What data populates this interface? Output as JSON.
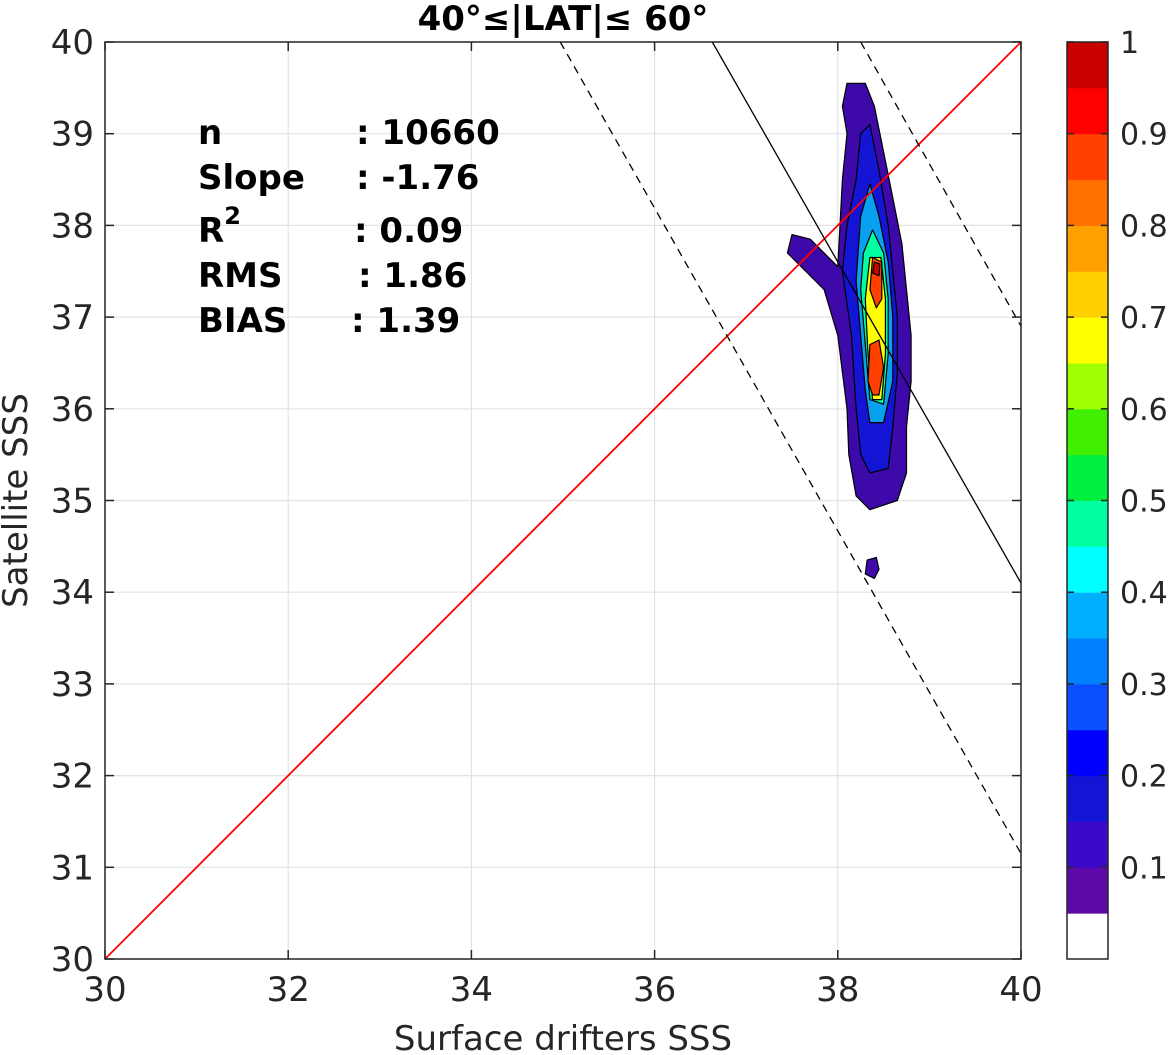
{
  "chart_data": {
    "type": "contour",
    "title": "40°≤|LAT|≤ 60°",
    "xlabel": "Surface drifters SSS",
    "ylabel": "Satellite SSS",
    "xlim": [
      30,
      40
    ],
    "ylim": [
      30,
      40
    ],
    "xticks": [
      "30",
      "32",
      "34",
      "36",
      "38",
      "40"
    ],
    "yticks": [
      "30",
      "31",
      "32",
      "33",
      "34",
      "35",
      "36",
      "37",
      "38",
      "39",
      "40"
    ],
    "grid": true,
    "stats": [
      {
        "label": "n",
        "value": ": 10660"
      },
      {
        "label": "Slope",
        "value": ": -1.76"
      },
      {
        "label": "R",
        "sup": "2",
        "value": ": 0.09"
      },
      {
        "label": "RMS",
        "value": ": 1.86"
      },
      {
        "label": "BIAS",
        "value": ": 1.39"
      }
    ],
    "one_to_one_line": {
      "color": "#ff0000",
      "x": [
        30,
        40
      ],
      "y": [
        30,
        40
      ]
    },
    "fit_line": {
      "slope": -1.76,
      "x": [
        36.63,
        40
      ],
      "y": [
        40,
        34.1
      ]
    },
    "fit_bounds": [
      {
        "x": [
          34.97,
          40
        ],
        "y": [
          40,
          31.15
        ]
      },
      {
        "x": [
          38.25,
          40
        ],
        "y": [
          40,
          36.9
        ]
      }
    ],
    "density_contours": [
      {
        "level": 0.05,
        "color": "#3d09a9",
        "points": [
          [
            38.0,
            37.55
          ],
          [
            37.7,
            37.85
          ],
          [
            37.5,
            37.9
          ],
          [
            37.45,
            37.7
          ],
          [
            37.6,
            37.55
          ],
          [
            37.85,
            37.3
          ],
          [
            38.0,
            36.8
          ],
          [
            38.1,
            36.0
          ],
          [
            38.12,
            35.5
          ],
          [
            38.2,
            35.05
          ],
          [
            38.35,
            34.9
          ],
          [
            38.65,
            35.0
          ],
          [
            38.75,
            35.3
          ],
          [
            38.75,
            35.8
          ],
          [
            38.8,
            36.3
          ],
          [
            38.8,
            36.8
          ],
          [
            38.75,
            37.3
          ],
          [
            38.7,
            37.8
          ],
          [
            38.6,
            38.3
          ],
          [
            38.5,
            38.8
          ],
          [
            38.4,
            39.3
          ],
          [
            38.3,
            39.55
          ],
          [
            38.1,
            39.55
          ],
          [
            38.05,
            39.3
          ],
          [
            38.1,
            39.0
          ],
          [
            38.05,
            38.5
          ]
        ]
      },
      {
        "level": 0.05,
        "color": "#3d09a9",
        "points": [
          [
            38.32,
            34.35
          ],
          [
            38.42,
            34.38
          ],
          [
            38.45,
            34.25
          ],
          [
            38.4,
            34.15
          ],
          [
            38.3,
            34.2
          ]
        ]
      },
      {
        "level": 0.15,
        "color": "#1414d4",
        "points": [
          [
            38.05,
            37.5
          ],
          [
            38.15,
            36.8
          ],
          [
            38.2,
            36.0
          ],
          [
            38.25,
            35.5
          ],
          [
            38.35,
            35.3
          ],
          [
            38.55,
            35.35
          ],
          [
            38.6,
            35.8
          ],
          [
            38.65,
            36.4
          ],
          [
            38.65,
            37.0
          ],
          [
            38.6,
            37.5
          ],
          [
            38.55,
            38.0
          ],
          [
            38.45,
            38.6
          ],
          [
            38.35,
            39.1
          ],
          [
            38.25,
            39.0
          ],
          [
            38.2,
            38.5
          ],
          [
            38.1,
            38.0
          ]
        ]
      },
      {
        "level": 0.3,
        "color": "#0aa0f0",
        "points": [
          [
            38.2,
            37.4
          ],
          [
            38.25,
            36.8
          ],
          [
            38.3,
            36.2
          ],
          [
            38.35,
            35.85
          ],
          [
            38.5,
            35.85
          ],
          [
            38.6,
            36.3
          ],
          [
            38.6,
            37.0
          ],
          [
            38.55,
            37.6
          ],
          [
            38.45,
            38.1
          ],
          [
            38.35,
            38.45
          ],
          [
            38.25,
            38.1
          ]
        ]
      },
      {
        "level": 0.4,
        "color": "#00ffa0",
        "points": [
          [
            38.25,
            37.3
          ],
          [
            38.3,
            36.7
          ],
          [
            38.35,
            36.1
          ],
          [
            38.5,
            36.05
          ],
          [
            38.55,
            36.6
          ],
          [
            38.55,
            37.2
          ],
          [
            38.5,
            37.7
          ],
          [
            38.38,
            37.95
          ],
          [
            38.28,
            37.7
          ]
        ]
      },
      {
        "level": 0.6,
        "color": "#ffff00",
        "points": [
          [
            38.3,
            37.2
          ],
          [
            38.33,
            36.6
          ],
          [
            38.38,
            36.1
          ],
          [
            38.48,
            36.1
          ],
          [
            38.52,
            36.6
          ],
          [
            38.52,
            37.2
          ],
          [
            38.47,
            37.65
          ],
          [
            38.35,
            37.65
          ]
        ]
      },
      {
        "level": 0.8,
        "color": "#ff4000",
        "points": [
          [
            38.35,
            37.3
          ],
          [
            38.38,
            37.65
          ],
          [
            38.48,
            37.6
          ],
          [
            38.48,
            37.2
          ],
          [
            38.42,
            37.1
          ]
        ]
      },
      {
        "level": 0.8,
        "color": "#ff4000",
        "points": [
          [
            38.33,
            36.3
          ],
          [
            38.35,
            36.7
          ],
          [
            38.45,
            36.75
          ],
          [
            38.5,
            36.45
          ],
          [
            38.45,
            36.15
          ],
          [
            38.38,
            36.15
          ]
        ]
      },
      {
        "level": 0.95,
        "color": "#c80000",
        "points": [
          [
            38.38,
            37.48
          ],
          [
            38.4,
            37.6
          ],
          [
            38.46,
            37.58
          ],
          [
            38.45,
            37.45
          ]
        ]
      }
    ],
    "colorbar": {
      "ticks": [
        "0.1",
        "0.2",
        "0.3",
        "0.4",
        "0.5",
        "0.6",
        "0.7",
        "0.8",
        "0.9",
        "1"
      ],
      "levels": [
        0,
        0.05,
        0.1,
        0.15,
        0.2,
        0.25,
        0.3,
        0.35,
        0.4,
        0.45,
        0.5,
        0.55,
        0.6,
        0.65,
        0.7,
        0.75,
        0.8,
        0.85,
        0.9,
        0.95,
        1
      ],
      "colors": [
        "#ffffff",
        "#5d09a9",
        "#3d09c9",
        "#1414d4",
        "#0000ff",
        "#0a50ff",
        "#0080ff",
        "#00b0ff",
        "#00ffff",
        "#00ffa0",
        "#00f040",
        "#40f000",
        "#a0ff00",
        "#ffff00",
        "#ffd000",
        "#ffa000",
        "#ff7000",
        "#ff4000",
        "#ff0000",
        "#c80000",
        "#800000"
      ]
    }
  }
}
